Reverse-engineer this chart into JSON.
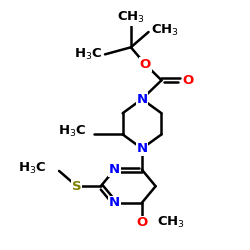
{
  "bg_color": "#ffffff",
  "bond_color": "#000000",
  "bond_width": 1.8,
  "atom_colors": {
    "N": "#0000ff",
    "O": "#ff0000",
    "S": "#808000",
    "C": "#000000"
  },
  "font_size": 9.5,
  "figsize": [
    2.5,
    2.5
  ],
  "dpi": 100,
  "xlim": [
    0,
    10
  ],
  "ylim": [
    0,
    10.5
  ]
}
